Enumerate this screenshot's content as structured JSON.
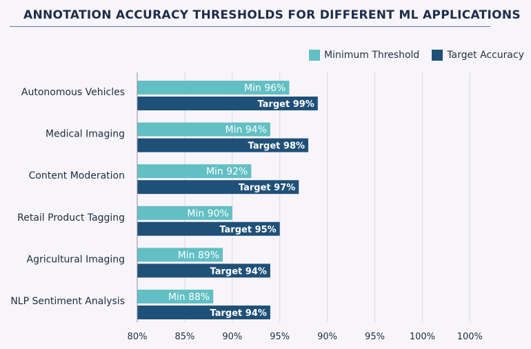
{
  "chart_data": {
    "type": "bar",
    "orientation": "horizontal",
    "title": "ANNOTATION ACCURACY THRESHOLDS FOR DIFFERENT ML APPLICATIONS",
    "categories": [
      "Autonomous Vehicles",
      "Medical Imaging",
      "Content Moderation",
      "Retail Product Tagging",
      "Agricultural Imaging",
      "NLP Sentiment Analysis"
    ],
    "series": [
      {
        "name": "Minimum Threshold",
        "color": "#62bfc3",
        "values": [
          96,
          94,
          92,
          90,
          89,
          88
        ],
        "labels": [
          "Min 96%",
          "Min 94%",
          "Min 92%",
          "Min 90%",
          "Min 89%",
          "Min 88%"
        ]
      },
      {
        "name": "Target Accuracy",
        "color": "#1f5078",
        "values": [
          99,
          98,
          97,
          95,
          94,
          94
        ],
        "labels": [
          "Target 99%",
          "Target 98%",
          "Target 97%",
          "Target 95%",
          "Target 94%",
          "Target 94%"
        ]
      }
    ],
    "x_tick_labels": [
      "80%",
      "85%",
      "90%",
      "95%",
      "90%",
      "95%",
      "100%",
      "100%"
    ],
    "xlim": [
      80,
      105
    ],
    "grid": true,
    "legend_position": "top-right"
  }
}
